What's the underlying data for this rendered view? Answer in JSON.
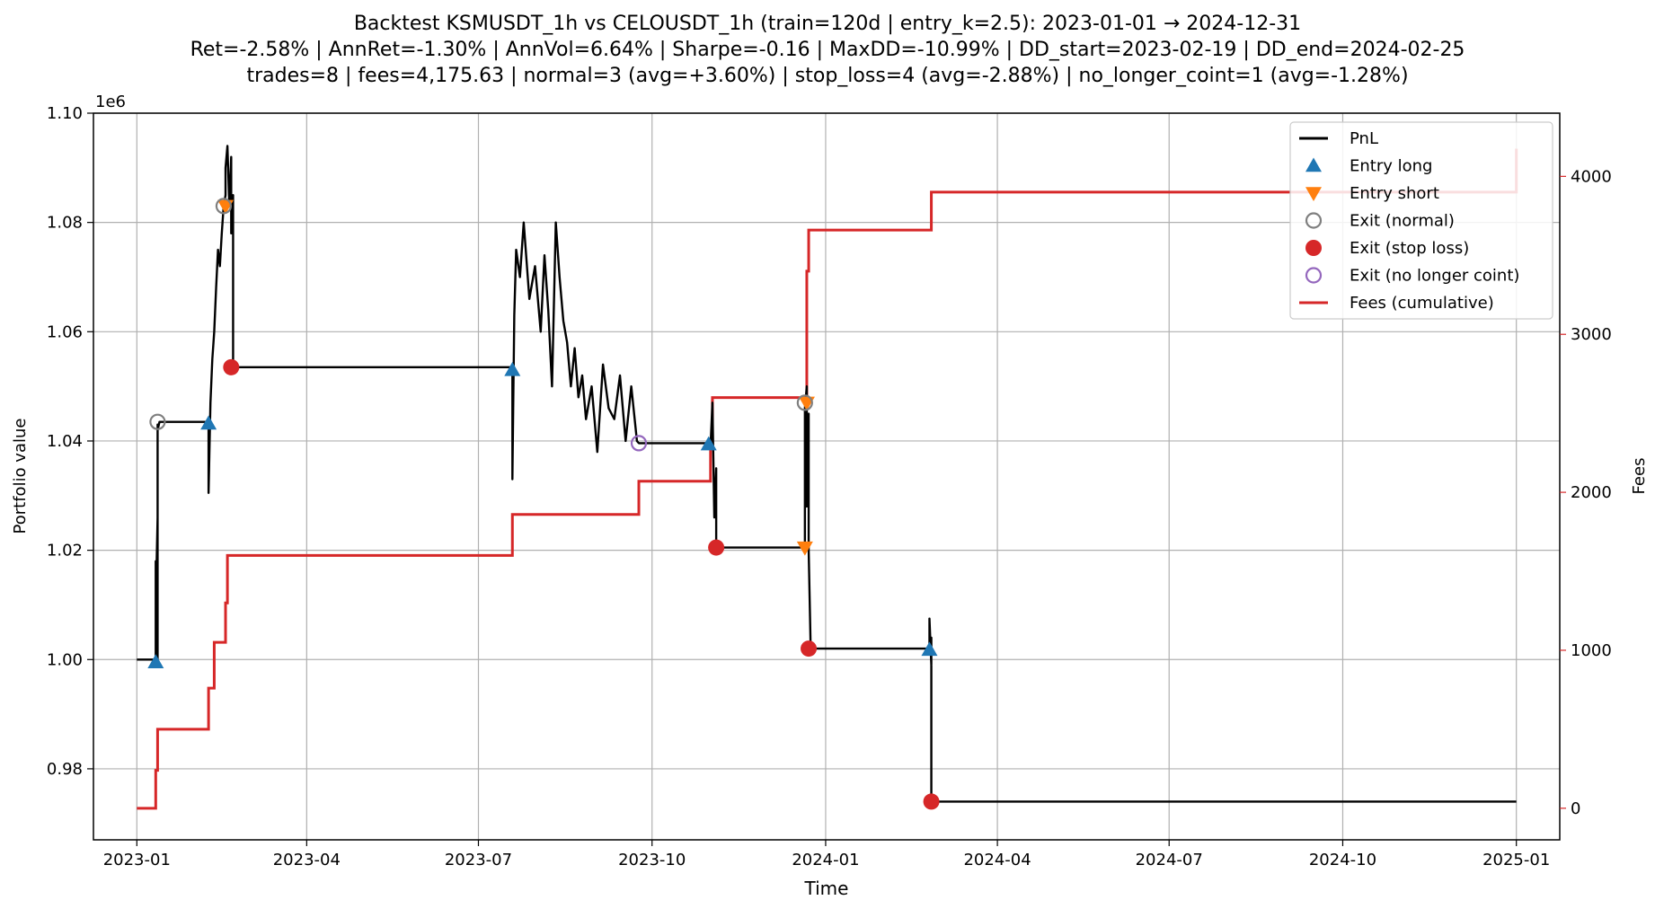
{
  "chart_data": {
    "type": "line",
    "title_lines": [
      "Backtest KSMUSDT_1h vs CELOUSDT_1h (train=120d | entry_k=2.5): 2023-01-01 → 2024-12-31",
      "Ret=-2.58% | AnnRet=-1.30% | AnnVol=6.64% | Sharpe=-0.16 | MaxDD=-10.99% | DD_start=2023-02-19 | DD_end=2024-02-25",
      "trades=8 | fees=4,175.63 | normal=3 (avg=+3.60%) | stop_loss=4 (avg=-2.88%) | no_longer_coint=1 (avg=-1.28%)"
    ],
    "xlabel": "Time",
    "ylabel": "Portfolio value",
    "y2label": "Fees",
    "y_offset_text": "1e6",
    "x_domain": [
      "2022-12-09",
      "2025-01-24"
    ],
    "ylim": [
      0.967,
      1.1
    ],
    "y2lim": [
      -200,
      4400
    ],
    "grid": true,
    "legend_position": "top-right",
    "x_ticks": [
      "2023-01",
      "2023-04",
      "2023-07",
      "2023-10",
      "2024-01",
      "2024-04",
      "2024-07",
      "2024-10",
      "2025-01"
    ],
    "y_ticks": [
      0.98,
      1.0,
      1.02,
      1.04,
      1.06,
      1.08,
      1.1
    ],
    "y_tick_labels": [
      "0.98",
      "1.00",
      "1.02",
      "1.04",
      "1.06",
      "1.08",
      "1.10"
    ],
    "y2_ticks": [
      0,
      1000,
      2000,
      3000,
      4000
    ],
    "y2_tick_labels": [
      "0",
      "1000",
      "2000",
      "3000",
      "4000"
    ],
    "colors": {
      "pnl": "#000000",
      "fees": "#d62728",
      "entry_long": "#1f77b4",
      "entry_short": "#ff7f0e",
      "exit_normal": "#7f7f7f",
      "exit_stop_loss": "#d62728",
      "exit_no_longer_coint": "#9467bd",
      "grid": "#b0b0b0",
      "fees_axis": "#d62728"
    },
    "legend": [
      {
        "label": "PnL",
        "kind": "line",
        "color_key": "pnl"
      },
      {
        "label": "Entry long",
        "kind": "triangle-up",
        "color_key": "entry_long"
      },
      {
        "label": "Entry short",
        "kind": "triangle-down",
        "color_key": "entry_short"
      },
      {
        "label": "Exit (normal)",
        "kind": "circle-open",
        "color_key": "exit_normal"
      },
      {
        "label": "Exit (stop loss)",
        "kind": "circle-filled",
        "color_key": "exit_stop_loss"
      },
      {
        "label": "Exit (no longer coint)",
        "kind": "circle-open",
        "color_key": "exit_no_longer_coint"
      },
      {
        "label": "Fees (cumulative)",
        "kind": "line",
        "color_key": "fees"
      }
    ],
    "series": [
      {
        "name": "PnL",
        "axis": "left",
        "x": [
          "2023-01-01",
          "2023-01-11",
          "2023-01-11",
          "2023-01-11",
          "2023-01-11",
          "2023-01-12",
          "2023-01-12",
          "2023-01-12",
          "2023-01-12",
          "2023-01-13",
          "2023-01-13",
          "2023-02-08",
          "2023-02-08",
          "2023-02-09",
          "2023-02-10",
          "2023-02-11",
          "2023-02-12",
          "2023-02-13",
          "2023-02-14",
          "2023-02-15",
          "2023-02-16",
          "2023-02-17",
          "2023-02-17",
          "2023-02-18",
          "2023-02-19",
          "2023-02-20",
          "2023-02-20",
          "2023-02-21",
          "2023-02-21",
          "2023-07-19",
          "2023-07-19",
          "2023-07-20",
          "2023-07-21",
          "2023-07-23",
          "2023-07-25",
          "2023-07-28",
          "2023-07-31",
          "2023-08-03",
          "2023-08-05",
          "2023-08-07",
          "2023-08-09",
          "2023-08-11",
          "2023-08-13",
          "2023-08-15",
          "2023-08-17",
          "2023-08-19",
          "2023-08-21",
          "2023-08-23",
          "2023-08-25",
          "2023-08-27",
          "2023-08-30",
          "2023-09-02",
          "2023-09-05",
          "2023-09-08",
          "2023-09-11",
          "2023-09-14",
          "2023-09-17",
          "2023-09-20",
          "2023-09-23",
          "2023-09-24",
          "2023-11-01",
          "2023-11-01",
          "2023-11-02",
          "2023-11-03",
          "2023-11-04",
          "2023-11-04",
          "2023-12-21",
          "2023-12-21",
          "2023-12-22",
          "2023-12-22",
          "2023-12-23",
          "2023-12-23",
          "2023-12-24",
          "2023-12-24",
          "2024-02-25",
          "2024-02-25",
          "2024-02-26",
          "2024-02-26",
          "2024-02-26",
          "2025-01-01"
        ],
        "values": [
          1.0,
          1.0,
          0.999,
          1.018,
          1.01,
          1.026,
          1.0,
          1.043,
          1.042,
          1.0435,
          1.0435,
          1.0435,
          1.0305,
          1.047,
          1.055,
          1.06,
          1.068,
          1.075,
          1.072,
          1.078,
          1.083,
          1.085,
          1.09,
          1.094,
          1.083,
          1.092,
          1.078,
          1.085,
          1.0535,
          1.0535,
          1.033,
          1.063,
          1.075,
          1.07,
          1.08,
          1.066,
          1.072,
          1.06,
          1.074,
          1.064,
          1.05,
          1.08,
          1.07,
          1.062,
          1.058,
          1.05,
          1.057,
          1.048,
          1.052,
          1.044,
          1.05,
          1.038,
          1.054,
          1.046,
          1.044,
          1.052,
          1.04,
          1.05,
          1.04,
          1.0396,
          1.0396,
          1.039,
          1.047,
          1.026,
          1.035,
          1.0205,
          1.0205,
          1.046,
          1.05,
          1.028,
          1.045,
          1.02,
          1.003,
          1.002,
          1.002,
          1.0075,
          0.999,
          1.004,
          0.974,
          0.974
        ]
      },
      {
        "name": "Fees (cumulative)",
        "axis": "right",
        "step": true,
        "x": [
          "2023-01-01",
          "2023-01-11",
          "2023-01-11",
          "2023-01-12",
          "2023-02-08",
          "2023-02-08",
          "2023-02-11",
          "2023-02-11",
          "2023-02-17",
          "2023-02-18",
          "2023-02-19",
          "2023-07-19",
          "2023-07-19",
          "2023-09-24",
          "2023-10-31",
          "2023-11-01",
          "2023-11-02",
          "2023-12-21",
          "2023-12-22",
          "2023-12-22",
          "2023-12-23",
          "2024-02-25",
          "2024-02-26",
          "2025-01-01"
        ],
        "values": [
          0,
          0,
          240,
          500,
          500,
          760,
          760,
          1050,
          1300,
          1600,
          1600,
          1600,
          1860,
          2070,
          2070,
          2300,
          2600,
          2600,
          3100,
          3400,
          3660,
          3660,
          3900,
          4175.63
        ]
      }
    ],
    "markers": {
      "entry_long": [
        {
          "x": "2023-01-11",
          "y": 0.9995
        },
        {
          "x": "2023-02-08",
          "y": 1.0432
        },
        {
          "x": "2023-07-19",
          "y": 1.053
        },
        {
          "x": "2023-10-31",
          "y": 1.0394
        },
        {
          "x": "2024-02-25",
          "y": 1.0018
        }
      ],
      "entry_short": [
        {
          "x": "2023-02-17",
          "y": 1.083
        },
        {
          "x": "2023-12-21",
          "y": 1.0205
        },
        {
          "x": "2023-12-22",
          "y": 1.047
        }
      ],
      "exit_normal": [
        {
          "x": "2023-01-12",
          "y": 1.0435
        },
        {
          "x": "2023-02-16",
          "y": 1.083
        },
        {
          "x": "2023-12-21",
          "y": 1.047
        }
      ],
      "exit_stop_loss": [
        {
          "x": "2023-02-20",
          "y": 1.0535
        },
        {
          "x": "2023-11-04",
          "y": 1.0205
        },
        {
          "x": "2023-12-23",
          "y": 1.002
        },
        {
          "x": "2024-02-26",
          "y": 0.974
        }
      ],
      "exit_no_longer_coint": [
        {
          "x": "2023-09-24",
          "y": 1.0396
        }
      ]
    }
  }
}
